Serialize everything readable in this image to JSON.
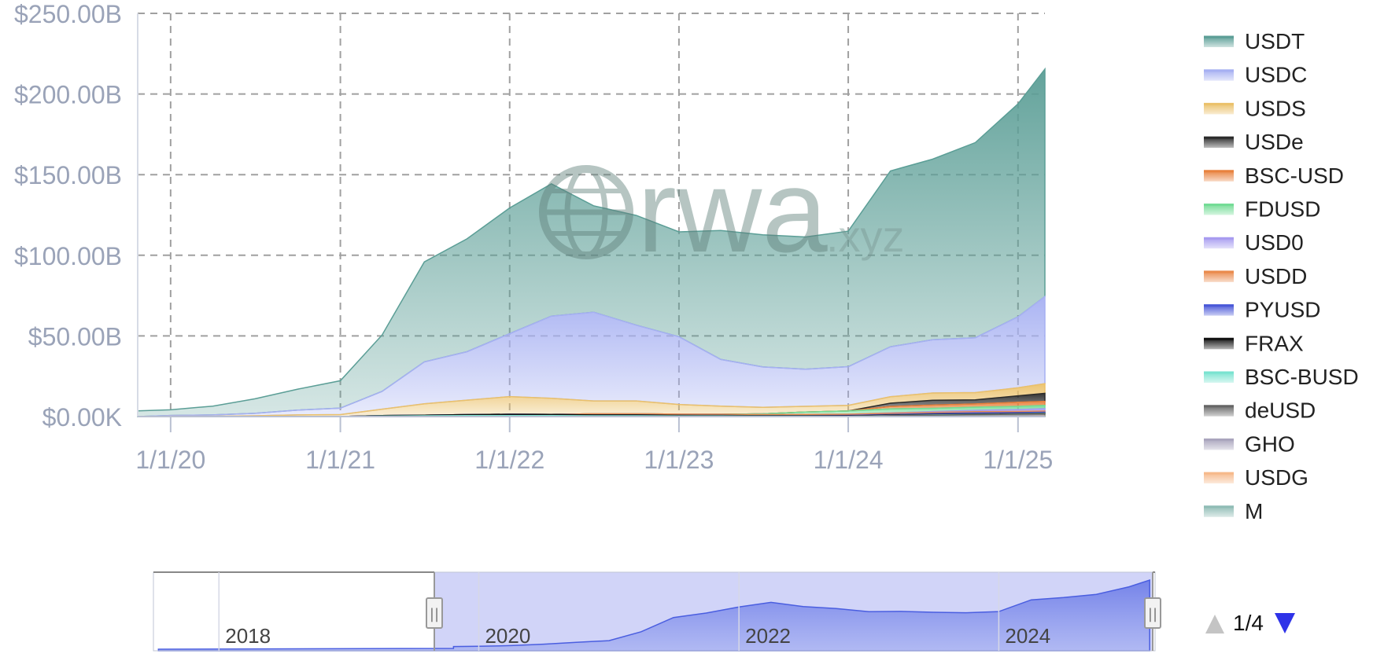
{
  "chart_data": {
    "type": "area",
    "stacked": true,
    "watermark": {
      "brand": "rwa",
      "suffix": ".xyz"
    },
    "x_start": "2019-10-22",
    "x_end": "2025-02-28",
    "y_ticks": [
      "$0.00K",
      "$50.00B",
      "$100.00B",
      "$150.00B",
      "$200.00B",
      "$250.00B"
    ],
    "y_tick_values": [
      0,
      50,
      100,
      150,
      200,
      250
    ],
    "x_ticks": [
      "1/1/20",
      "1/1/21",
      "1/1/22",
      "1/1/23",
      "1/1/24",
      "1/1/25"
    ],
    "x_tick_dates": [
      "2020-01-01",
      "2021-01-01",
      "2022-01-01",
      "2023-01-01",
      "2024-01-01",
      "2025-01-01"
    ],
    "ylim": [
      0,
      250
    ],
    "grid": true,
    "legend_position": "right",
    "dates": [
      "2019-10-22",
      "2020-01-01",
      "2020-04-01",
      "2020-07-01",
      "2020-10-01",
      "2021-01-01",
      "2021-04-01",
      "2021-07-01",
      "2021-10-01",
      "2022-01-01",
      "2022-04-01",
      "2022-07-01",
      "2022-10-01",
      "2023-01-01",
      "2023-04-01",
      "2023-07-01",
      "2023-10-01",
      "2024-01-01",
      "2024-04-01",
      "2024-07-01",
      "2024-10-01",
      "2025-01-01",
      "2025-02-28"
    ],
    "series": [
      {
        "name": "M",
        "color": "#8fbcb5",
        "values": [
          0,
          0,
          0,
          0,
          0,
          0,
          0,
          0,
          0,
          0,
          0,
          0,
          0,
          0,
          0,
          0,
          0,
          0,
          0,
          0,
          0.01,
          0.02,
          0.03
        ]
      },
      {
        "name": "USDG",
        "color": "#f6b98a",
        "values": [
          0,
          0,
          0,
          0,
          0,
          0,
          0,
          0,
          0,
          0,
          0,
          0,
          0,
          0,
          0,
          0,
          0,
          0,
          0,
          0,
          0,
          0.05,
          0.2
        ]
      },
      {
        "name": "GHO",
        "color": "#a9a4bd",
        "values": [
          0,
          0,
          0,
          0,
          0,
          0,
          0,
          0,
          0,
          0,
          0,
          0,
          0,
          0,
          0.02,
          0.03,
          0.04,
          0.05,
          0.08,
          0.1,
          0.15,
          0.18,
          0.2
        ]
      },
      {
        "name": "deUSD",
        "color": "#666666",
        "values": [
          0,
          0,
          0,
          0,
          0,
          0,
          0,
          0,
          0,
          0,
          0,
          0,
          0,
          0,
          0,
          0,
          0,
          0,
          0.5,
          0.8,
          1.0,
          1.2,
          1.3
        ]
      },
      {
        "name": "BSC-BUSD",
        "color": "#79e3d0",
        "values": [
          0,
          0,
          0,
          0,
          0,
          0,
          0.3,
          0.5,
          0.6,
          0.6,
          0.6,
          0.5,
          0.5,
          0.4,
          0.3,
          0.2,
          0.2,
          0.1,
          0.1,
          0.1,
          0.1,
          0.1,
          0.1
        ]
      },
      {
        "name": "FRAX",
        "color": "#111111",
        "values": [
          0,
          0,
          0,
          0,
          0,
          0,
          0.3,
          0.4,
          0.6,
          0.8,
          0.7,
          0.5,
          0.5,
          0.4,
          0.4,
          0.3,
          0.3,
          0.3,
          0.3,
          0.3,
          0.3,
          0.3,
          0.3
        ]
      },
      {
        "name": "PYUSD",
        "color": "#4a58d8",
        "values": [
          0,
          0,
          0,
          0,
          0,
          0,
          0,
          0,
          0,
          0,
          0,
          0,
          0,
          0,
          0,
          0,
          0.1,
          0.3,
          0.4,
          0.6,
          0.8,
          0.6,
          0.6
        ]
      },
      {
        "name": "USDD",
        "color": "#ea8a4c",
        "values": [
          0,
          0,
          0,
          0,
          0,
          0,
          0,
          0,
          0,
          0,
          0,
          0.7,
          0.7,
          0.7,
          0.7,
          0.7,
          0.7,
          0.7,
          0.7,
          0.7,
          0.7,
          0.7,
          0.7
        ]
      },
      {
        "name": "USD0",
        "color": "#a79bf0",
        "values": [
          0,
          0,
          0,
          0,
          0,
          0,
          0,
          0,
          0,
          0,
          0,
          0,
          0,
          0,
          0,
          0,
          0,
          0,
          0.2,
          0.5,
          0.8,
          1.2,
          1.5
        ]
      },
      {
        "name": "FDUSD",
        "color": "#74dc96",
        "values": [
          0,
          0,
          0,
          0,
          0,
          0,
          0,
          0,
          0,
          0,
          0,
          0,
          0,
          0,
          0,
          0.5,
          1.5,
          2.0,
          2.5,
          2.0,
          2.0,
          2.0,
          2.0
        ]
      },
      {
        "name": "BSC-USD",
        "color": "#e8823e",
        "values": [
          0,
          0,
          0,
          0,
          0,
          0,
          0,
          0,
          0,
          0,
          0,
          0,
          0,
          0,
          0,
          0,
          0,
          0,
          1.5,
          2.0,
          2.0,
          2.5,
          2.5
        ]
      },
      {
        "name": "USDe",
        "color": "#2a2a2a",
        "values": [
          0,
          0,
          0,
          0,
          0,
          0,
          0,
          0,
          0,
          0,
          0,
          0,
          0,
          0,
          0,
          0,
          0,
          0,
          2.0,
          3.0,
          2.5,
          4.0,
          5.0
        ]
      },
      {
        "name": "USDS",
        "color": "#ebc16a",
        "values": [
          0,
          0.2,
          0.2,
          0.5,
          1.0,
          1.2,
          4.0,
          7.0,
          9.0,
          11.0,
          10.0,
          8.0,
          8.0,
          6.0,
          5.0,
          4.0,
          3.5,
          3.5,
          4.0,
          4.5,
          4.5,
          5.0,
          6.0
        ]
      },
      {
        "name": "USDC",
        "color": "#a6b0f2",
        "values": [
          0,
          0.5,
          0.8,
          1.5,
          3.0,
          4.0,
          11.0,
          26.0,
          30.0,
          39.0,
          51.0,
          55.0,
          47.0,
          42.0,
          29.0,
          25.0,
          23.0,
          24.0,
          31.0,
          33.0,
          34.0,
          44.0,
          54.0
        ]
      },
      {
        "name": "USDT",
        "color": "#5b9e96",
        "values": [
          3.5,
          3.5,
          5.5,
          9.0,
          13.0,
          17.0,
          35.0,
          62.0,
          70.0,
          78.0,
          82.0,
          66.0,
          68.0,
          65.0,
          80.0,
          82.0,
          82.0,
          84.0,
          109.0,
          112.0,
          121.0,
          132.0,
          141.0
        ]
      }
    ],
    "legend": [
      "USDT",
      "USDC",
      "USDS",
      "USDe",
      "BSC-USD",
      "FDUSD",
      "USD0",
      "USDD",
      "PYUSD",
      "FRAX",
      "BSC-BUSD",
      "deUSD",
      "GHO",
      "USDG",
      "M"
    ]
  },
  "navigator": {
    "labels": [
      "2018",
      "2020",
      "2022",
      "2024"
    ],
    "handle_glyph": "||"
  },
  "pager": {
    "text": "1/4",
    "up_icon": "triangle-up-icon",
    "down_icon": "triangle-down-icon"
  }
}
